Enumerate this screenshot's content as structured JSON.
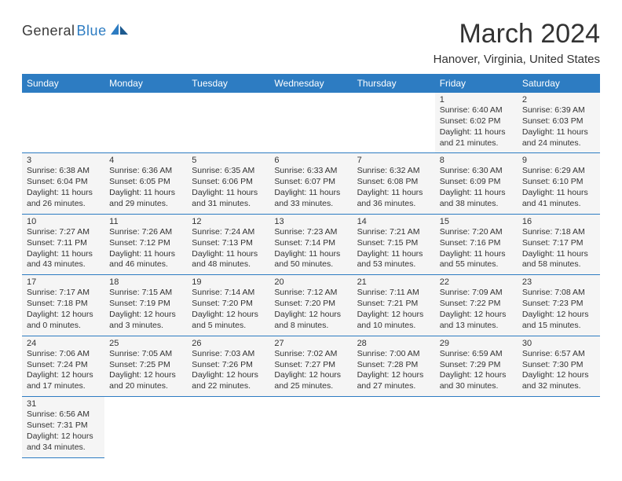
{
  "logo": {
    "part1": "General",
    "part2": "Blue"
  },
  "title": "March 2024",
  "location": "Hanover, Virginia, United States",
  "weekdays": [
    "Sunday",
    "Monday",
    "Tuesday",
    "Wednesday",
    "Thursday",
    "Friday",
    "Saturday"
  ],
  "colors": {
    "accent": "#2d7cc2",
    "cellbg": "#f5f5f5",
    "text": "#333333",
    "page": "#ffffff"
  },
  "typography": {
    "title_fontsize": 34,
    "location_fontsize": 15,
    "header_fontsize": 12,
    "daynum_fontsize": 11,
    "info_fontsize": 10.5
  },
  "layout": {
    "columns": 7,
    "rows": 6,
    "first_weekday_index": 5,
    "cell_border_bottom": "1px solid #2d7cc2"
  },
  "days": [
    {
      "n": 1,
      "sunrise": "6:40 AM",
      "sunset": "6:02 PM",
      "dl_h": 11,
      "dl_m": 21
    },
    {
      "n": 2,
      "sunrise": "6:39 AM",
      "sunset": "6:03 PM",
      "dl_h": 11,
      "dl_m": 24
    },
    {
      "n": 3,
      "sunrise": "6:38 AM",
      "sunset": "6:04 PM",
      "dl_h": 11,
      "dl_m": 26
    },
    {
      "n": 4,
      "sunrise": "6:36 AM",
      "sunset": "6:05 PM",
      "dl_h": 11,
      "dl_m": 29
    },
    {
      "n": 5,
      "sunrise": "6:35 AM",
      "sunset": "6:06 PM",
      "dl_h": 11,
      "dl_m": 31
    },
    {
      "n": 6,
      "sunrise": "6:33 AM",
      "sunset": "6:07 PM",
      "dl_h": 11,
      "dl_m": 33
    },
    {
      "n": 7,
      "sunrise": "6:32 AM",
      "sunset": "6:08 PM",
      "dl_h": 11,
      "dl_m": 36
    },
    {
      "n": 8,
      "sunrise": "6:30 AM",
      "sunset": "6:09 PM",
      "dl_h": 11,
      "dl_m": 38
    },
    {
      "n": 9,
      "sunrise": "6:29 AM",
      "sunset": "6:10 PM",
      "dl_h": 11,
      "dl_m": 41
    },
    {
      "n": 10,
      "sunrise": "7:27 AM",
      "sunset": "7:11 PM",
      "dl_h": 11,
      "dl_m": 43
    },
    {
      "n": 11,
      "sunrise": "7:26 AM",
      "sunset": "7:12 PM",
      "dl_h": 11,
      "dl_m": 46
    },
    {
      "n": 12,
      "sunrise": "7:24 AM",
      "sunset": "7:13 PM",
      "dl_h": 11,
      "dl_m": 48
    },
    {
      "n": 13,
      "sunrise": "7:23 AM",
      "sunset": "7:14 PM",
      "dl_h": 11,
      "dl_m": 50
    },
    {
      "n": 14,
      "sunrise": "7:21 AM",
      "sunset": "7:15 PM",
      "dl_h": 11,
      "dl_m": 53
    },
    {
      "n": 15,
      "sunrise": "7:20 AM",
      "sunset": "7:16 PM",
      "dl_h": 11,
      "dl_m": 55
    },
    {
      "n": 16,
      "sunrise": "7:18 AM",
      "sunset": "7:17 PM",
      "dl_h": 11,
      "dl_m": 58
    },
    {
      "n": 17,
      "sunrise": "7:17 AM",
      "sunset": "7:18 PM",
      "dl_h": 12,
      "dl_m": 0
    },
    {
      "n": 18,
      "sunrise": "7:15 AM",
      "sunset": "7:19 PM",
      "dl_h": 12,
      "dl_m": 3
    },
    {
      "n": 19,
      "sunrise": "7:14 AM",
      "sunset": "7:20 PM",
      "dl_h": 12,
      "dl_m": 5
    },
    {
      "n": 20,
      "sunrise": "7:12 AM",
      "sunset": "7:20 PM",
      "dl_h": 12,
      "dl_m": 8
    },
    {
      "n": 21,
      "sunrise": "7:11 AM",
      "sunset": "7:21 PM",
      "dl_h": 12,
      "dl_m": 10
    },
    {
      "n": 22,
      "sunrise": "7:09 AM",
      "sunset": "7:22 PM",
      "dl_h": 12,
      "dl_m": 13
    },
    {
      "n": 23,
      "sunrise": "7:08 AM",
      "sunset": "7:23 PM",
      "dl_h": 12,
      "dl_m": 15
    },
    {
      "n": 24,
      "sunrise": "7:06 AM",
      "sunset": "7:24 PM",
      "dl_h": 12,
      "dl_m": 17
    },
    {
      "n": 25,
      "sunrise": "7:05 AM",
      "sunset": "7:25 PM",
      "dl_h": 12,
      "dl_m": 20
    },
    {
      "n": 26,
      "sunrise": "7:03 AM",
      "sunset": "7:26 PM",
      "dl_h": 12,
      "dl_m": 22
    },
    {
      "n": 27,
      "sunrise": "7:02 AM",
      "sunset": "7:27 PM",
      "dl_h": 12,
      "dl_m": 25
    },
    {
      "n": 28,
      "sunrise": "7:00 AM",
      "sunset": "7:28 PM",
      "dl_h": 12,
      "dl_m": 27
    },
    {
      "n": 29,
      "sunrise": "6:59 AM",
      "sunset": "7:29 PM",
      "dl_h": 12,
      "dl_m": 30
    },
    {
      "n": 30,
      "sunrise": "6:57 AM",
      "sunset": "7:30 PM",
      "dl_h": 12,
      "dl_m": 32
    },
    {
      "n": 31,
      "sunrise": "6:56 AM",
      "sunset": "7:31 PM",
      "dl_h": 12,
      "dl_m": 34
    }
  ],
  "label_templates": {
    "sunrise_prefix": "Sunrise: ",
    "sunset_prefix": "Sunset: ",
    "daylight_prefix": "Daylight: ",
    "hours_word": " hours",
    "and_word": "and ",
    "minutes_word": " minutes."
  }
}
